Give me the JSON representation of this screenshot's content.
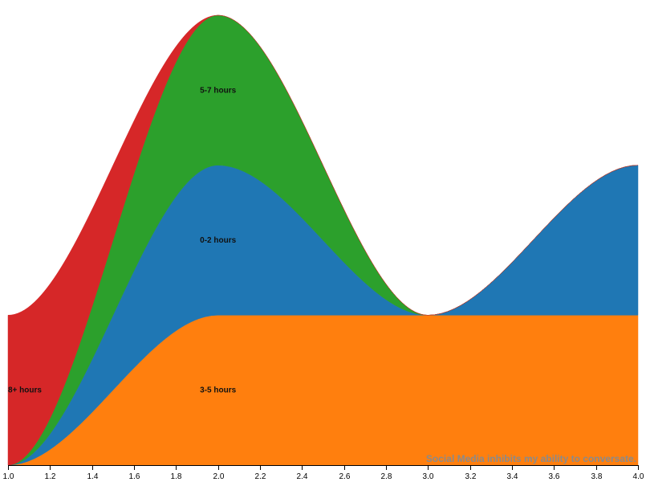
{
  "chart_data": {
    "type": "area",
    "stacked": true,
    "curve": "smooth",
    "title": "Social Media inhibits my ability to conversate.",
    "title_position": "bottom-right",
    "xlabel": "",
    "ylabel": "",
    "x": [
      1,
      2,
      3,
      4
    ],
    "xlim": [
      1.0,
      4.0
    ],
    "ylim": [
      0,
      3
    ],
    "x_ticks": [
      "1.0",
      "1.2",
      "1.4",
      "1.6",
      "1.8",
      "2.0",
      "2.2",
      "2.4",
      "2.6",
      "2.8",
      "3.0",
      "3.2",
      "3.4",
      "3.6",
      "3.8",
      "4.0"
    ],
    "series": [
      {
        "name": "3-5 hours",
        "values": [
          0,
          1,
          1,
          1
        ],
        "color": "#ff7f0e",
        "label_at_x": 2.0
      },
      {
        "name": "0-2 hours",
        "values": [
          0,
          1,
          0,
          1
        ],
        "color": "#1f77b4",
        "label_at_x": 2.0
      },
      {
        "name": "5-7 hours",
        "values": [
          0,
          1,
          0,
          0
        ],
        "color": "#2ca02c",
        "label_at_x": 2.0
      },
      {
        "name": "8+ hours",
        "values": [
          1,
          0,
          0,
          0
        ],
        "color": "#d62728",
        "label_at_x": 1.0
      }
    ]
  }
}
